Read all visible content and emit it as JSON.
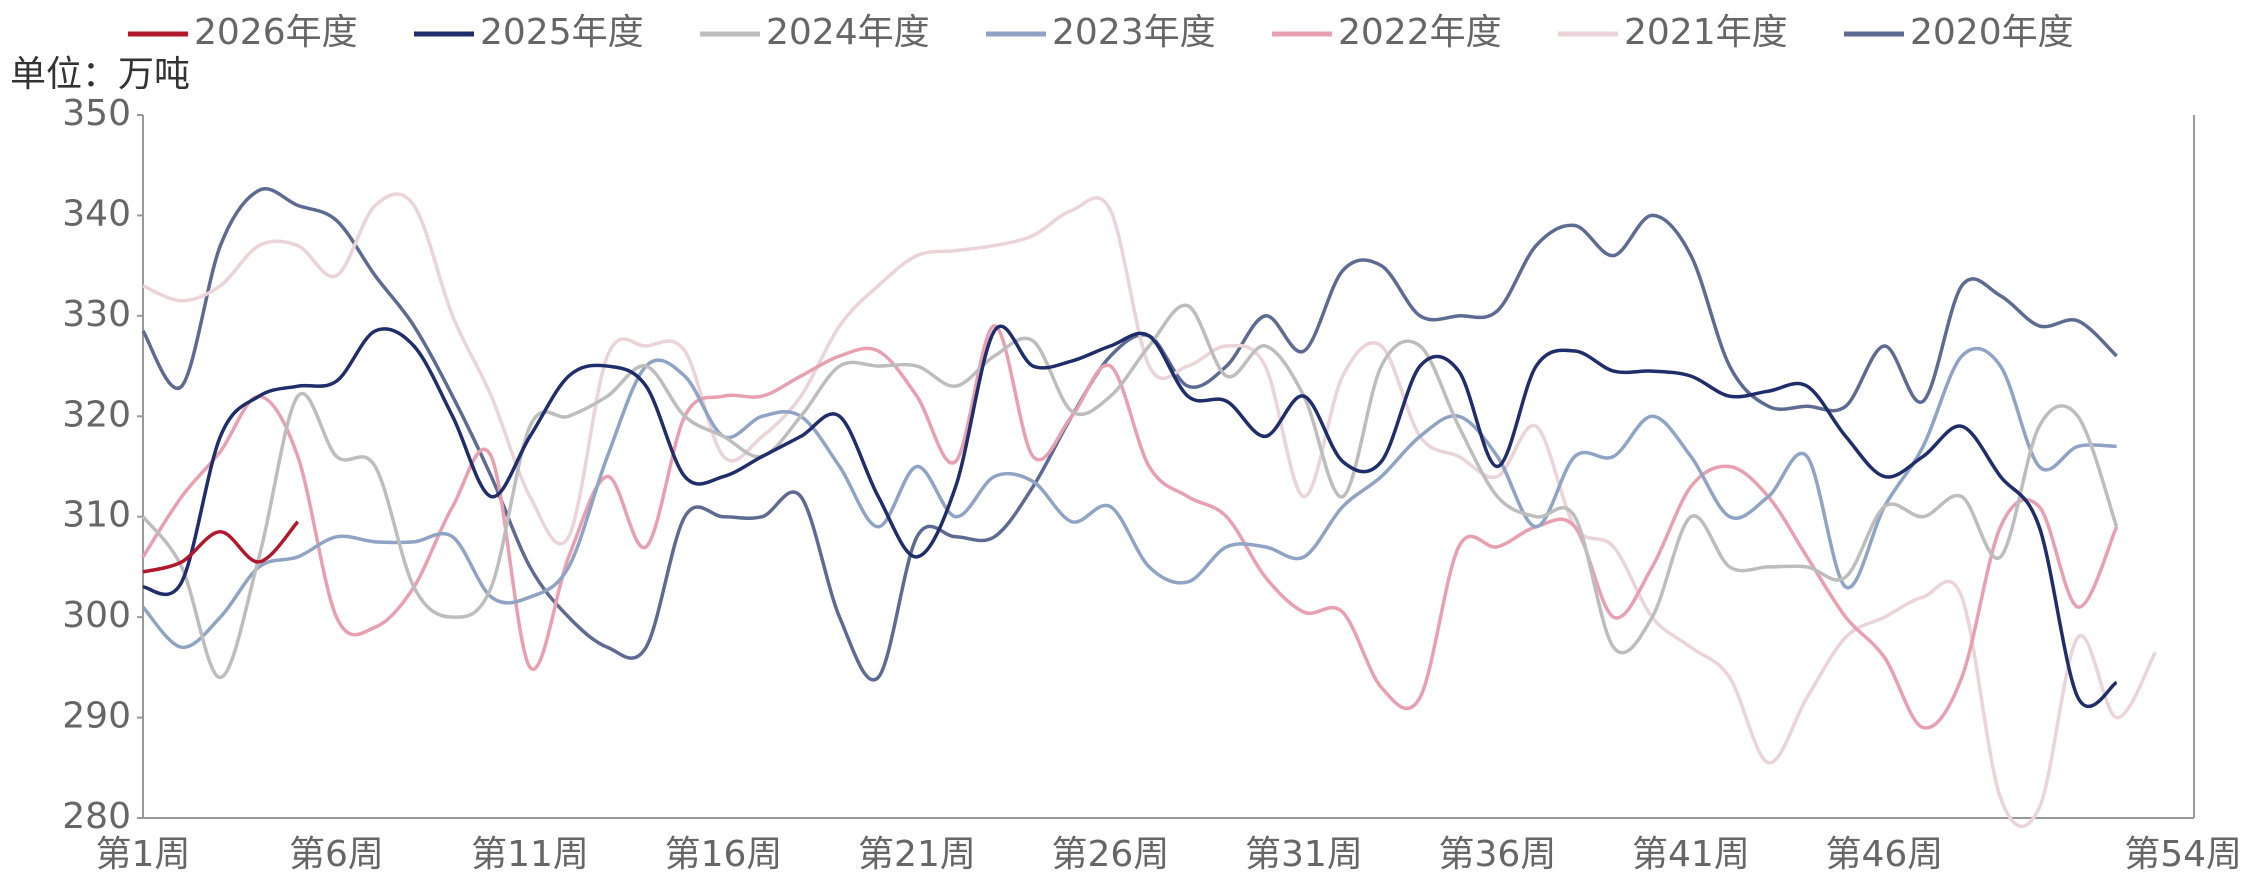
{
  "chart_data": {
    "type": "line",
    "unit": "单位：万吨",
    "categories": [
      "第1周",
      null,
      null,
      null,
      null,
      "第6周",
      null,
      null,
      null,
      null,
      "第11周",
      null,
      null,
      null,
      null,
      "第16周",
      null,
      null,
      null,
      null,
      "第21周",
      null,
      null,
      null,
      null,
      "第26周",
      null,
      null,
      null,
      null,
      "第31周",
      null,
      null,
      null,
      null,
      "第36周",
      null,
      null,
      null,
      null,
      "第41周",
      null,
      null,
      null,
      null,
      "第46周",
      null,
      null,
      null,
      null,
      null,
      null,
      null,
      "第54周"
    ],
    "ylim": [
      280,
      350
    ],
    "yticks": [
      280,
      290,
      300,
      310,
      320,
      330,
      340,
      350
    ],
    "grid": false,
    "legend": "top",
    "smooth": true,
    "series": [
      {
        "name": "2026年度",
        "color": "#b2182b",
        "values": [
          304.5,
          305.5,
          308.5,
          305.5,
          309.5,
          null,
          null,
          null,
          null,
          null,
          null,
          null,
          null,
          null,
          null,
          null,
          null,
          null,
          null,
          null,
          null,
          null,
          null,
          null,
          null,
          null,
          null,
          null,
          null,
          null,
          null,
          null,
          null,
          null,
          null,
          null,
          null,
          null,
          null,
          null,
          null,
          null,
          null,
          null,
          null,
          null,
          null,
          null,
          null,
          null,
          null,
          null,
          null,
          null
        ]
      },
      {
        "name": "2025年度",
        "color": "#1f2d6b",
        "values": [
          303,
          303.5,
          318,
          322,
          323,
          323.5,
          328.5,
          327,
          320,
          312,
          318,
          324,
          325,
          323,
          314,
          314,
          316,
          318,
          320,
          312,
          306,
          313,
          328.5,
          325,
          325.5,
          327,
          328,
          322,
          321.5,
          318,
          322,
          315.5,
          315.5,
          325,
          324.5,
          315,
          325,
          326.5,
          324.5,
          324.5,
          324,
          322,
          322.5,
          323,
          318,
          314,
          316,
          319,
          314,
          309,
          292,
          293.5,
          null,
          null
        ]
      },
      {
        "name": "2024年度",
        "color": "#bdbdbd",
        "values": [
          310,
          305,
          294,
          306,
          322,
          316,
          315,
          303,
          300,
          303,
          319,
          320,
          322,
          325,
          320,
          318,
          316,
          320,
          325,
          325,
          325,
          323,
          326,
          327.5,
          320.5,
          322,
          327,
          331,
          324,
          327,
          322,
          312,
          325,
          327,
          319,
          312,
          310,
          310,
          297,
          300,
          310,
          305,
          305,
          305,
          304,
          311,
          310,
          312,
          306,
          319,
          320,
          309,
          null,
          null
        ]
      },
      {
        "name": "2023年度",
        "color": "#8fa3c4",
        "values": [
          301,
          297,
          300,
          305,
          306,
          308,
          307.5,
          307.5,
          308,
          302,
          302,
          305,
          316,
          325,
          324,
          318,
          320,
          320,
          315,
          309,
          315,
          310,
          314,
          313.5,
          309.5,
          311,
          305,
          303.5,
          307,
          307,
          306,
          311,
          314,
          318,
          320,
          316,
          309,
          316,
          316,
          320,
          316,
          310,
          312,
          316,
          303,
          311,
          317,
          326,
          325,
          315,
          317,
          317,
          null,
          null
        ]
      },
      {
        "name": "2022年度",
        "color": "#e8a0b0",
        "values": [
          306,
          312,
          316.5,
          322,
          316,
          300,
          299,
          303,
          311,
          316,
          295,
          306,
          314,
          307,
          320,
          322,
          322,
          324,
          326,
          326.5,
          322,
          315.5,
          329,
          316,
          320,
          325,
          315,
          312,
          310,
          304,
          300.5,
          300.5,
          293,
          292,
          307,
          307,
          309,
          309,
          300,
          305,
          313,
          315,
          312,
          306,
          300,
          296,
          289,
          294,
          309,
          311,
          301,
          309,
          null,
          null
        ]
      },
      {
        "name": "2021年度",
        "color": "#ead4d9",
        "values": [
          333,
          331.5,
          333,
          337,
          337,
          334,
          341,
          341,
          330,
          322,
          312,
          308,
          326,
          327,
          326.5,
          316,
          318,
          322,
          329,
          333,
          336,
          336.5,
          337,
          338,
          340.5,
          340.5,
          325,
          325,
          327,
          325,
          312,
          324,
          327,
          318,
          316,
          314,
          319,
          309,
          307,
          300,
          297,
          294,
          285.5,
          292,
          298,
          300,
          302,
          302,
          282,
          281,
          298,
          290,
          296.5,
          null
        ]
      },
      {
        "name": "2020年度",
        "color": "#5d6b92",
        "values": [
          328.5,
          323,
          337,
          342.5,
          341,
          339.5,
          334,
          329,
          322,
          314,
          305,
          300,
          297,
          297,
          310,
          310,
          310,
          312,
          300,
          294,
          308,
          308,
          308,
          313,
          320,
          326,
          328,
          323,
          325,
          330,
          326.5,
          334.5,
          335,
          330,
          330,
          330.5,
          337,
          339,
          336,
          340,
          336,
          325,
          321,
          321,
          321,
          327,
          321.5,
          333,
          332,
          329,
          329.5,
          326,
          null,
          null
        ]
      }
    ]
  }
}
